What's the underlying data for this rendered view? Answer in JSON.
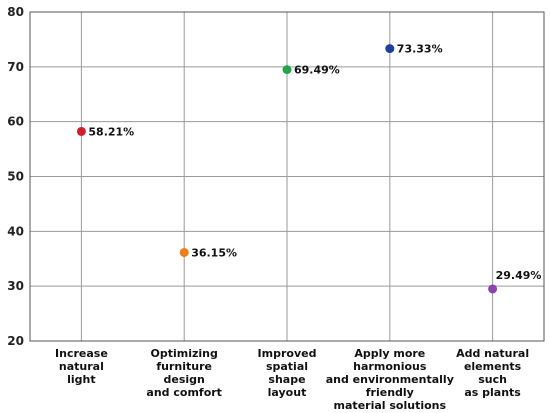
{
  "chart_data": {
    "type": "scatter",
    "categories": [
      [
        "Increase",
        "natural",
        "light"
      ],
      [
        "Optimizing",
        "furniture",
        "design",
        "and comfort"
      ],
      [
        "Improved",
        "spatial",
        "shape",
        "layout"
      ],
      [
        "Apply more",
        "harmonious",
        "and environmentally",
        "friendly",
        "material solutions"
      ],
      [
        "Add natural",
        "elements",
        "such",
        "as plants"
      ]
    ],
    "values": [
      58.21,
      36.15,
      69.49,
      73.33,
      29.49
    ],
    "data_labels": [
      "58.21%",
      "36.15%",
      "69.49%",
      "73.33%",
      "29.49%"
    ],
    "colors": [
      "#d0202a",
      "#f07d19",
      "#22a54a",
      "#1f3fa0",
      "#8e44ad"
    ],
    "ylim": [
      20,
      80
    ],
    "yticks": [
      20,
      30,
      40,
      50,
      60,
      70,
      80
    ],
    "grid": true,
    "title": "",
    "xlabel": "",
    "ylabel": ""
  }
}
